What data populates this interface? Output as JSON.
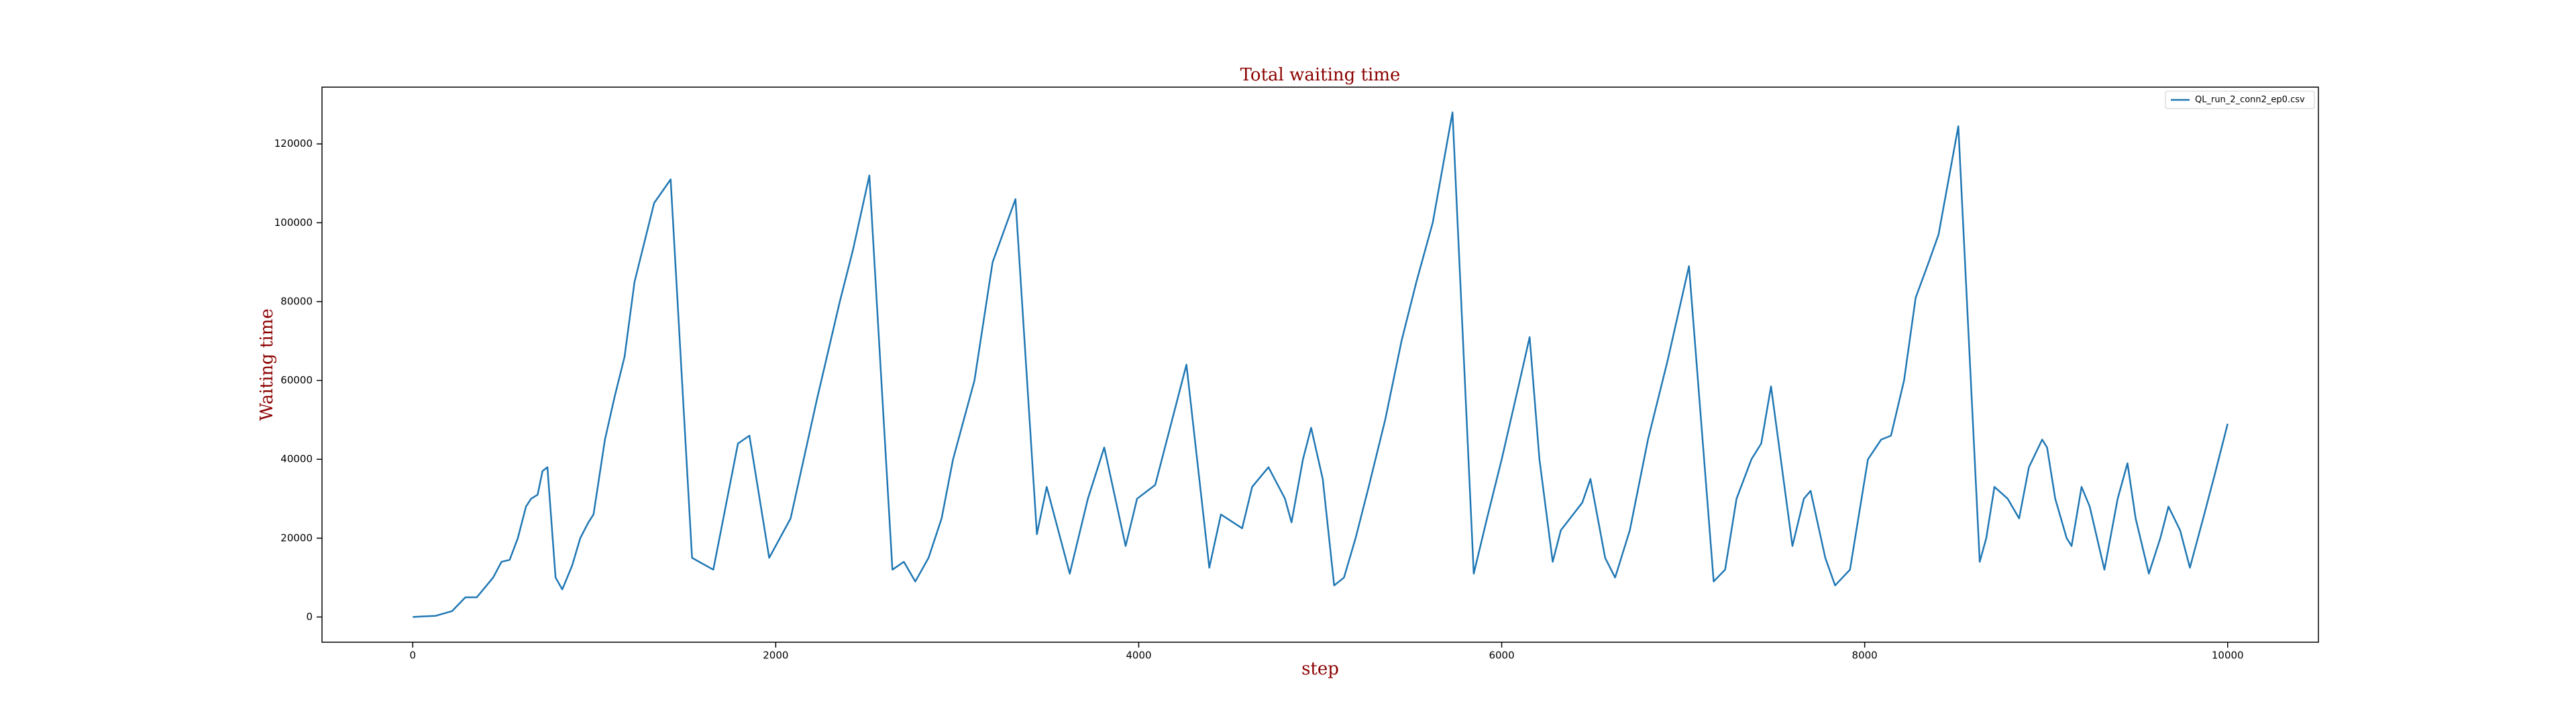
{
  "chart_data": {
    "type": "line",
    "title": "Total waiting time",
    "x_label": "step",
    "y_label": "Waiting time",
    "xlim": [
      -500,
      10500
    ],
    "ylim": [
      -6400,
      134400
    ],
    "xticks": [
      0,
      2000,
      4000,
      6000,
      8000,
      10000
    ],
    "yticks": [
      0,
      20000,
      40000,
      60000,
      80000,
      100000,
      120000
    ],
    "grid": false,
    "legend": "upper right",
    "x": [
      0,
      127,
      217,
      290,
      353,
      443,
      489,
      534,
      579,
      624,
      652,
      688,
      715,
      742,
      787,
      824,
      878,
      923,
      968,
      996,
      1059,
      1113,
      1167,
      1222,
      1276,
      1330,
      1421,
      1539,
      1656,
      1792,
      1855,
      1964,
      2082,
      2226,
      2353,
      2425,
      2516,
      2643,
      2706,
      2769,
      2842,
      2914,
      2977,
      3095,
      3195,
      3321,
      3439,
      3493,
      3620,
      3720,
      3810,
      3928,
      3991,
      4091,
      4263,
      4389,
      4453,
      4570,
      4625,
      4715,
      4806,
      4842,
      4905,
      4950,
      5014,
      5077,
      5131,
      5195,
      5267,
      5358,
      5448,
      5530,
      5620,
      5729,
      5846,
      5919,
      6000,
      6100,
      6154,
      6208,
      6281,
      6326,
      6444,
      6489,
      6570,
      6625,
      6706,
      6806,
      6914,
      7032,
      7168,
      7231,
      7294,
      7376,
      7430,
      7484,
      7602,
      7665,
      7702,
      7783,
      7837,
      7919,
      8018,
      8091,
      8145,
      8217,
      8281,
      8353,
      8407,
      8516,
      8634,
      8670,
      8715,
      8788,
      8851,
      8905,
      8978,
      9005,
      9050,
      9113,
      9140,
      9195,
      9240,
      9321,
      9394,
      9448,
      9493,
      9566,
      9629,
      9674,
      9738,
      9792,
      9865,
      9928,
      10000
    ],
    "series": [
      {
        "name": "QL_run_2_conn2_ep0.csv",
        "color": "#1f77b4",
        "values": [
          0,
          300,
          1500,
          5000,
          5000,
          10000,
          14000,
          14500,
          20000,
          28000,
          30000,
          31000,
          37000,
          38000,
          10000,
          7000,
          13000,
          20000,
          24000,
          26000,
          45000,
          56000,
          66000,
          85000,
          95000,
          105000,
          111000,
          15000,
          12000,
          44000,
          46000,
          15000,
          25000,
          55000,
          80000,
          93000,
          112000,
          12000,
          14000,
          9000,
          15000,
          25000,
          40000,
          60000,
          90000,
          106000,
          21000,
          33000,
          11000,
          30000,
          43000,
          18000,
          30000,
          33500,
          64000,
          12500,
          26000,
          22500,
          33000,
          38000,
          30000,
          24000,
          40000,
          48000,
          35000,
          8000,
          10000,
          20000,
          33000,
          50000,
          70000,
          85000,
          100000,
          128000,
          11000,
          25000,
          40000,
          60000,
          71000,
          40000,
          14000,
          22000,
          29000,
          35000,
          15000,
          10000,
          22000,
          45000,
          65000,
          89000,
          9000,
          12000,
          30000,
          40000,
          44000,
          58500,
          18000,
          30000,
          32000,
          15000,
          8000,
          12000,
          40000,
          45000,
          46000,
          60000,
          81000,
          90000,
          97000,
          124500,
          14000,
          20000,
          33000,
          30000,
          25000,
          38000,
          45000,
          43000,
          30000,
          20000,
          18000,
          33000,
          28000,
          12000,
          30000,
          39000,
          25000,
          11000,
          20000,
          28000,
          22000,
          12500,
          25000,
          36000,
          49000
        ]
      }
    ]
  }
}
